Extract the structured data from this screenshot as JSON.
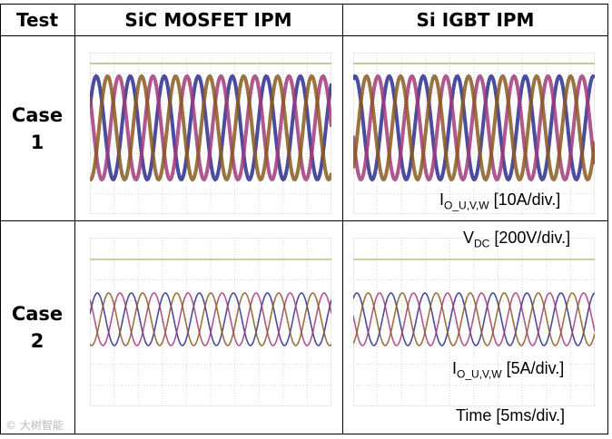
{
  "table": {
    "headers": [
      "Test",
      "SiC MOSFET IPM",
      "Si IGBT IPM"
    ],
    "rows": [
      {
        "label_line1": "Case",
        "label_line2": "1"
      },
      {
        "label_line1": "Case",
        "label_line2": "2"
      }
    ]
  },
  "annotations": {
    "current_case1_main": "I",
    "current_case1_sub": "O_U,V,W",
    "current_case1_scale": " [10A/div.]",
    "vdc_main": "V",
    "vdc_sub": "DC",
    "vdc_scale": " [200V/div.]",
    "current_case2_main": "I",
    "current_case2_sub": "O_U,V,W",
    "current_case2_scale": " [5A/div.]",
    "time": "Time [5ms/div.]"
  },
  "watermark": "© 大树智能",
  "colors": {
    "phase_u": "#2b2b8f",
    "phase_v": "#a23a7a",
    "phase_w": "#8a5a1e",
    "dc_bus": "#b8b27a",
    "grid": "#d6d6d6"
  }
}
